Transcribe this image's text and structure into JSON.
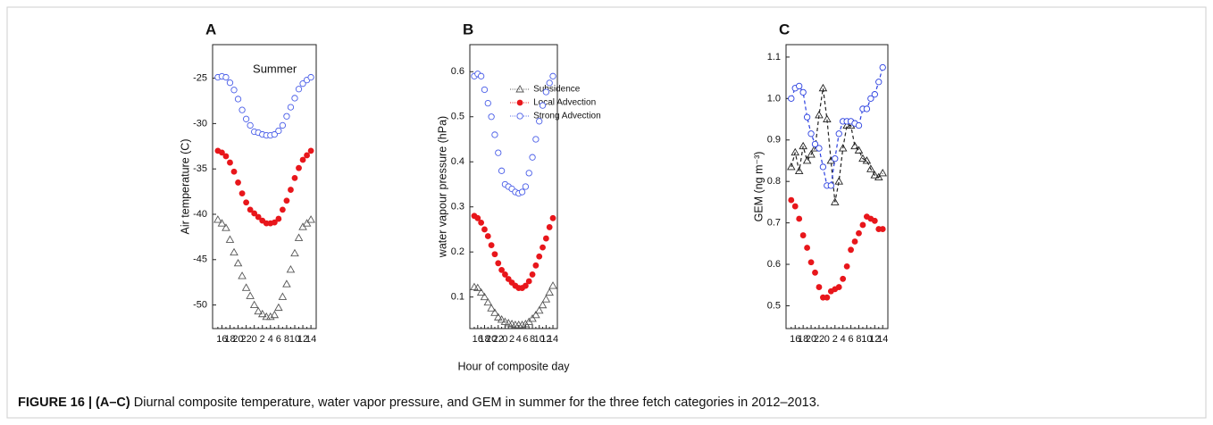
{
  "chart_data": [
    {
      "type": "scatter",
      "title": "A",
      "ylabel": "Air temperature (C)",
      "annotation": "Summer",
      "categories": [
        null,
        "16",
        null,
        "18",
        null,
        "20",
        null,
        "22",
        null,
        "0",
        null,
        "2",
        null,
        "4",
        null,
        "6",
        null,
        "8",
        null,
        "10",
        null,
        "12",
        null,
        "14"
      ],
      "ylim": [
        -52.6,
        -21.3
      ],
      "yticks": [
        -25,
        -30,
        -35,
        -40,
        -45,
        -50
      ],
      "series": [
        {
          "color": "#555555",
          "marker": "triangle",
          "values": [
            -40.6,
            -41.0,
            -41.5,
            -42.8,
            -44.2,
            -45.4,
            -46.8,
            -48.1,
            -49.0,
            -50.0,
            -50.7,
            -51.0,
            -51.3,
            -51.3,
            -51.1,
            -50.3,
            -49.1,
            -47.7,
            -46.1,
            -44.3,
            -42.6,
            -41.4,
            -41.0,
            -40.6
          ]
        },
        {
          "color": "#e8161b",
          "marker": "circle-filled",
          "values": [
            -33.0,
            -33.2,
            -33.6,
            -34.3,
            -35.3,
            -36.5,
            -37.7,
            -38.7,
            -39.5,
            -39.9,
            -40.3,
            -40.7,
            -41.0,
            -41.0,
            -40.9,
            -40.5,
            -39.5,
            -38.5,
            -37.3,
            -36.0,
            -34.9,
            -34.0,
            -33.5,
            -33.0
          ]
        },
        {
          "color": "#4a5ee8",
          "marker": "circle-open",
          "values": [
            -24.9,
            -24.8,
            -24.9,
            -25.5,
            -26.3,
            -27.3,
            -28.5,
            -29.5,
            -30.2,
            -30.9,
            -31.0,
            -31.2,
            -31.3,
            -31.3,
            -31.2,
            -30.8,
            -30.2,
            -29.2,
            -28.2,
            -27.2,
            -26.2,
            -25.6,
            -25.2,
            -24.9
          ]
        }
      ]
    },
    {
      "type": "scatter",
      "title": "B",
      "ylabel": "water vapour pressure (hPa)",
      "xlabel": "Hour of composite day",
      "legend": "upper center",
      "categories": [
        null,
        "16",
        null,
        "18",
        null,
        "20",
        null,
        "22",
        null,
        "0",
        null,
        "2",
        null,
        "4",
        null,
        "6",
        null,
        "8",
        null,
        "10",
        null,
        "12",
        null,
        "14"
      ],
      "ylim": [
        0.03,
        0.66
      ],
      "yticks": [
        0.1,
        0.2,
        0.3,
        0.4,
        0.5,
        0.6
      ],
      "series": [
        {
          "name": "Subsidence",
          "color": "#555555",
          "marker": "triangle",
          "values": [
            0.122,
            0.12,
            0.11,
            0.1,
            0.088,
            0.075,
            0.065,
            0.055,
            0.05,
            0.045,
            0.042,
            0.04,
            0.038,
            0.038,
            0.038,
            0.04,
            0.045,
            0.052,
            0.06,
            0.07,
            0.082,
            0.095,
            0.11,
            0.125
          ]
        },
        {
          "name": "Local Advection",
          "color": "#e8161b",
          "marker": "circle-filled",
          "values": [
            0.28,
            0.275,
            0.265,
            0.25,
            0.235,
            0.215,
            0.195,
            0.175,
            0.16,
            0.15,
            0.14,
            0.132,
            0.125,
            0.12,
            0.12,
            0.125,
            0.135,
            0.15,
            0.17,
            0.19,
            0.21,
            0.23,
            0.255,
            0.275
          ]
        },
        {
          "name": "Strong Advection",
          "color": "#4a5ee8",
          "marker": "circle-open",
          "values": [
            0.59,
            0.595,
            0.59,
            0.56,
            0.53,
            0.5,
            0.46,
            0.42,
            0.38,
            0.35,
            0.345,
            0.34,
            0.333,
            0.33,
            0.333,
            0.345,
            0.375,
            0.41,
            0.45,
            0.49,
            0.525,
            0.555,
            0.575,
            0.59
          ]
        }
      ]
    },
    {
      "type": "scatter",
      "title": "C",
      "ylabel": "GEM (ng m⁻³)",
      "categories": [
        null,
        "16",
        null,
        "18",
        null,
        "20",
        null,
        "22",
        null,
        "0",
        null,
        "2",
        null,
        "4",
        null,
        "6",
        null,
        "8",
        null,
        "10",
        null,
        "12",
        null,
        "14"
      ],
      "ylim": [
        0.445,
        1.13
      ],
      "yticks": [
        0.5,
        0.6,
        0.7,
        0.8,
        0.9,
        {
          "value": 1,
          "label": "1.0"
        },
        1.1
      ],
      "series": [
        {
          "color": "#222222",
          "marker": "triangle",
          "line": "dashed",
          "values": [
            0.835,
            0.87,
            0.825,
            0.885,
            0.85,
            0.865,
            0.88,
            0.96,
            1.025,
            0.95,
            0.85,
            0.75,
            0.8,
            0.88,
            0.935,
            0.935,
            0.885,
            0.875,
            0.855,
            0.85,
            0.83,
            0.815,
            0.81,
            0.82
          ]
        },
        {
          "color": "#e8161b",
          "marker": "circle-filled",
          "values": [
            0.755,
            0.74,
            0.71,
            0.67,
            0.64,
            0.605,
            0.58,
            0.545,
            0.52,
            0.52,
            0.535,
            0.54,
            0.545,
            0.565,
            0.595,
            0.635,
            0.655,
            0.675,
            0.695,
            0.715,
            0.71,
            0.705,
            0.685,
            0.685
          ]
        },
        {
          "color": "#2a3fe0",
          "marker": "circle-open",
          "line": "dashed",
          "values": [
            1.0,
            1.025,
            1.03,
            1.015,
            0.955,
            0.915,
            0.89,
            0.88,
            0.835,
            0.79,
            0.79,
            0.855,
            0.915,
            0.945,
            0.945,
            0.945,
            0.94,
            0.935,
            0.975,
            0.975,
            1.0,
            1.01,
            1.04,
            1.075
          ]
        }
      ]
    }
  ],
  "figure_caption": {
    "label": "FIGURE 16 | (A–C)",
    "text": " Diurnal composite temperature, water vapor pressure, and GEM in summer for the three fetch categories in 2012–2013."
  }
}
